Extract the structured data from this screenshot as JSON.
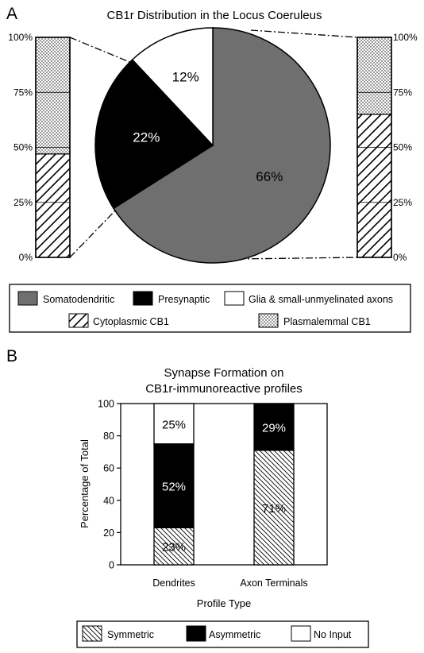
{
  "panel_a": {
    "letter": "A",
    "legend": {
      "somatodendritic": "Somatodendritic",
      "presynaptic": "Presynaptic",
      "glia": "Glia & small-unmyelinated axons",
      "cytoplasmic": "Cytoplasmic CB1",
      "plasmalemmal": "Plasmalemmal CB1"
    }
  },
  "panel_b": {
    "letter": "B",
    "legend": {
      "symmetric": "Symmetric",
      "asymmetric": "Asymmetric",
      "no_input": "No Input"
    }
  },
  "colors": {
    "somatodendritic": "#6f6f6f",
    "presynaptic": "#000000",
    "glia": "#ffffff"
  },
  "chart_data": [
    {
      "type": "pie",
      "title": "CB1r Distribution in the Locus Coeruleus",
      "categories": [
        "Somatodendritic",
        "Presynaptic",
        "Glia & small-unmyelinated axons"
      ],
      "values": [
        66,
        22,
        12
      ],
      "labels": [
        "66%",
        "22%",
        "12%"
      ]
    },
    {
      "type": "bar",
      "stacked": true,
      "title": "",
      "ylabel": "",
      "ylim": [
        0,
        100
      ],
      "ticks": [
        "0%",
        "25%",
        "50%",
        "75%",
        "100%"
      ],
      "categories": [
        "Presynaptic"
      ],
      "series": [
        {
          "name": "Cytoplasmic CB1",
          "values": [
            47
          ]
        },
        {
          "name": "Plasmalemmal CB1",
          "values": [
            53
          ]
        }
      ],
      "legend": "bottom"
    },
    {
      "type": "bar",
      "stacked": true,
      "title": "",
      "ylabel": "",
      "ylim": [
        0,
        100
      ],
      "ticks": [
        "0%",
        "25%",
        "50%",
        "75%",
        "100%"
      ],
      "categories": [
        "Somatodendritic"
      ],
      "series": [
        {
          "name": "Cytoplasmic CB1",
          "values": [
            65
          ]
        },
        {
          "name": "Plasmalemmal CB1",
          "values": [
            35
          ]
        }
      ],
      "legend": "bottom"
    },
    {
      "type": "bar",
      "stacked": true,
      "title": "Synapse Formation on CB1r-immunoreactive profiles",
      "title_lines": [
        "Synapse Formation on",
        "CB1r-immunoreactive profiles"
      ],
      "xlabel": "Profile Type",
      "ylabel": "Percentage of Total",
      "ylim": [
        0,
        100
      ],
      "yticks": [
        0,
        20,
        40,
        60,
        80,
        100
      ],
      "grid": false,
      "categories": [
        "Dendrites",
        "Axon Terminals"
      ],
      "series": [
        {
          "name": "Symmetric",
          "values": [
            23,
            71
          ],
          "labels": [
            "23%",
            "71%"
          ]
        },
        {
          "name": "Asymmetric",
          "values": [
            52,
            29
          ],
          "labels": [
            "52%",
            "29%"
          ]
        },
        {
          "name": "No Input",
          "values": [
            25,
            0
          ],
          "labels": [
            "25%",
            ""
          ]
        }
      ],
      "legend": "bottom"
    }
  ]
}
